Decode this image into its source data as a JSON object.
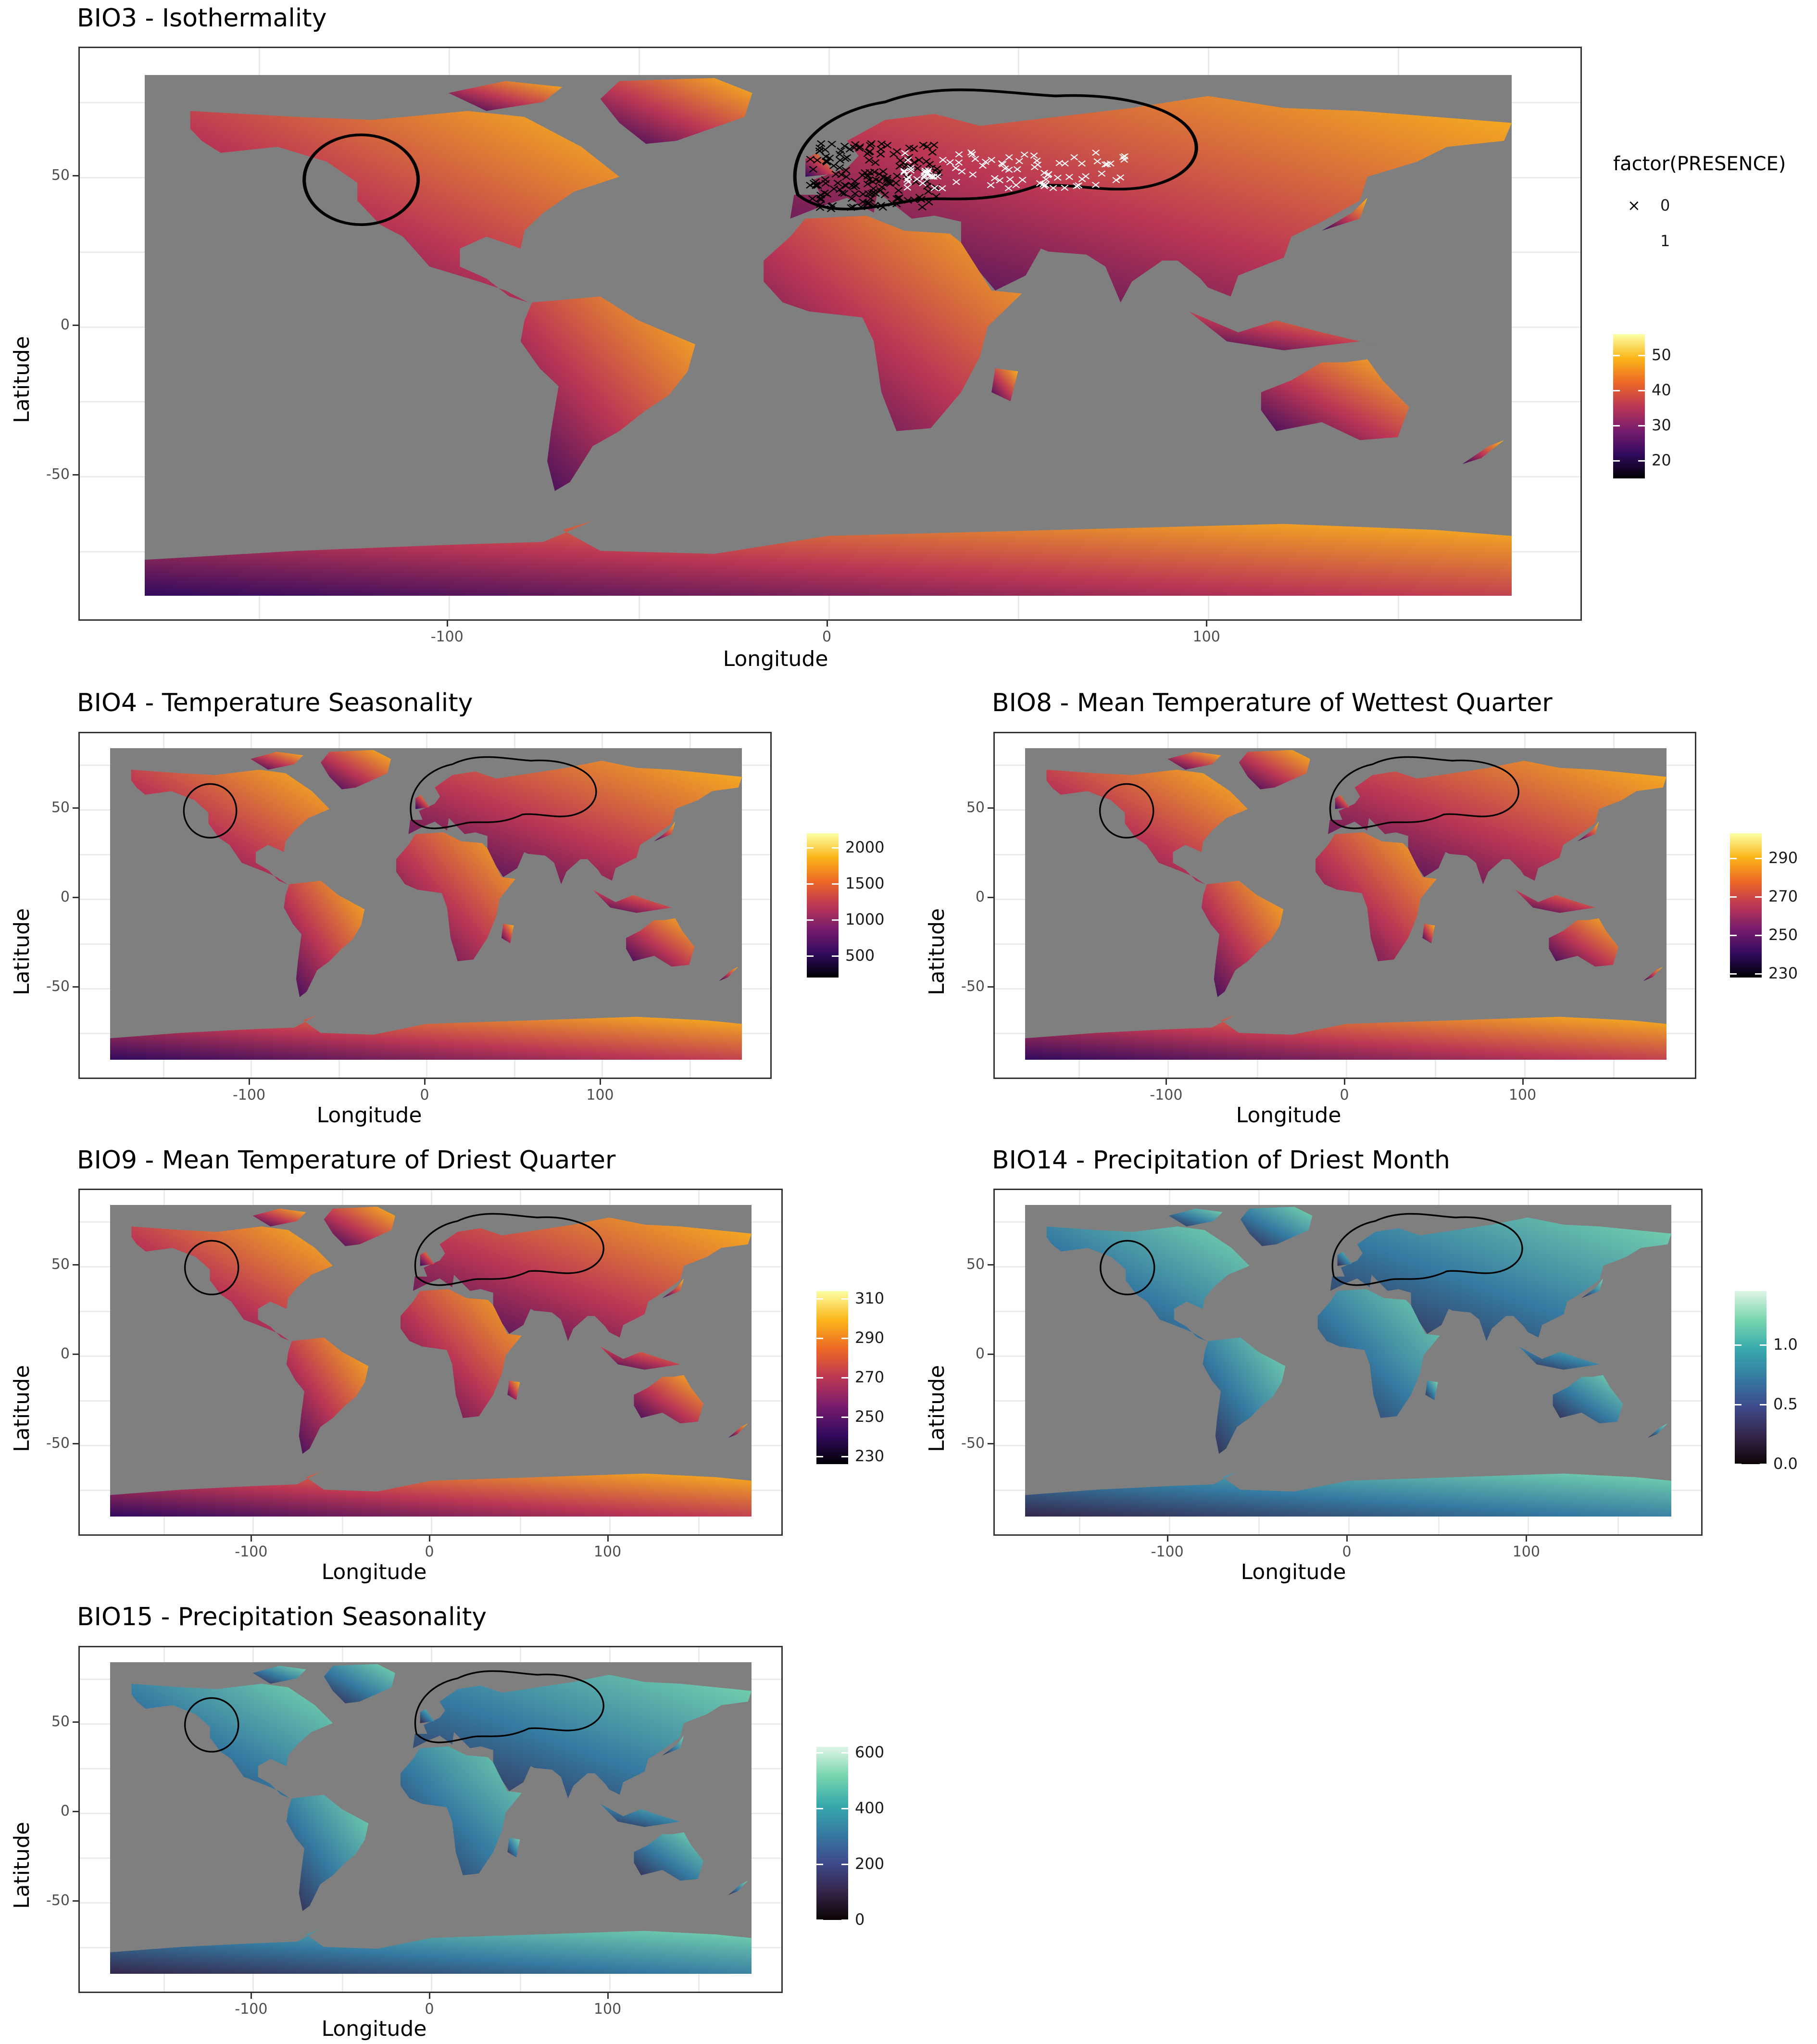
{
  "panels": [
    {
      "key": "bio3",
      "title": "BIO3 - Isothermality",
      "xlabel": "Longitude",
      "ylabel": "Latitude",
      "x_ticks": [
        "-100",
        "0",
        "100"
      ],
      "y_ticks": [
        "50",
        "0",
        "-50"
      ],
      "palette": "inferno",
      "colorbar_ticks": [
        "50",
        "40",
        "30",
        "20"
      ],
      "colorbar_range": [
        15,
        56
      ]
    },
    {
      "key": "bio4",
      "title": "BIO4 - Temperature Seasonality",
      "xlabel": "Longitude",
      "ylabel": "Latitude",
      "x_ticks": [
        "-100",
        "0",
        "100"
      ],
      "y_ticks": [
        "50",
        "0",
        "-50"
      ],
      "palette": "inferno",
      "colorbar_ticks": [
        "2000",
        "1500",
        "1000",
        "500"
      ],
      "colorbar_range": [
        200,
        2200
      ]
    },
    {
      "key": "bio8",
      "title": "BIO8 - Mean Temperature of Wettest Quarter",
      "xlabel": "Longitude",
      "ylabel": "Latitude",
      "x_ticks": [
        "-100",
        "0",
        "100"
      ],
      "y_ticks": [
        "50",
        "0",
        "-50"
      ],
      "palette": "inferno",
      "colorbar_ticks": [
        "290",
        "270",
        "250",
        "230"
      ],
      "colorbar_range": [
        228,
        303
      ]
    },
    {
      "key": "bio9",
      "title": "BIO9 - Mean Temperature of Driest Quarter",
      "xlabel": "Longitude",
      "ylabel": "Latitude",
      "x_ticks": [
        "-100",
        "0",
        "100"
      ],
      "y_ticks": [
        "50",
        "0",
        "-50"
      ],
      "palette": "inferno",
      "colorbar_ticks": [
        "310",
        "290",
        "270",
        "250",
        "230"
      ],
      "colorbar_range": [
        226,
        314
      ]
    },
    {
      "key": "bio14",
      "title": "BIO14 - Precipitation of Driest Month",
      "xlabel": "Longitude",
      "ylabel": "Latitude",
      "x_ticks": [
        "-100",
        "0",
        "100"
      ],
      "y_ticks": [
        "50",
        "0",
        "-50"
      ],
      "palette": "mako",
      "colorbar_ticks": [
        "1.0",
        "0.5",
        "0.0"
      ],
      "colorbar_range": [
        0,
        1.45
      ]
    },
    {
      "key": "bio15",
      "title": "BIO15 - Precipitation Seasonality",
      "xlabel": "Longitude",
      "ylabel": "Latitude",
      "x_ticks": [
        "-100",
        "0",
        "100"
      ],
      "y_ticks": [
        "50",
        "0",
        "-50"
      ],
      "palette": "mako",
      "colorbar_ticks": [
        "600",
        "400",
        "200",
        "0"
      ],
      "colorbar_range": [
        0,
        620
      ]
    }
  ],
  "legend": {
    "title": "factor(PRESENCE)",
    "items": [
      {
        "label": "0",
        "color": "#000000",
        "symbol": "×"
      },
      {
        "label": "1",
        "color": "#ffffff",
        "symbol": "×"
      }
    ]
  },
  "colors": {
    "ocean": "#7f7f7f",
    "inferno": [
      "#000004",
      "#320a5e",
      "#781c6d",
      "#bc3754",
      "#ed6925",
      "#fbb61a",
      "#fcffa4"
    ],
    "mako": [
      "#0b0405",
      "#35264c",
      "#3e4b8c",
      "#357ba2",
      "#38aaac",
      "#78d6ae",
      "#def5e5"
    ]
  }
}
